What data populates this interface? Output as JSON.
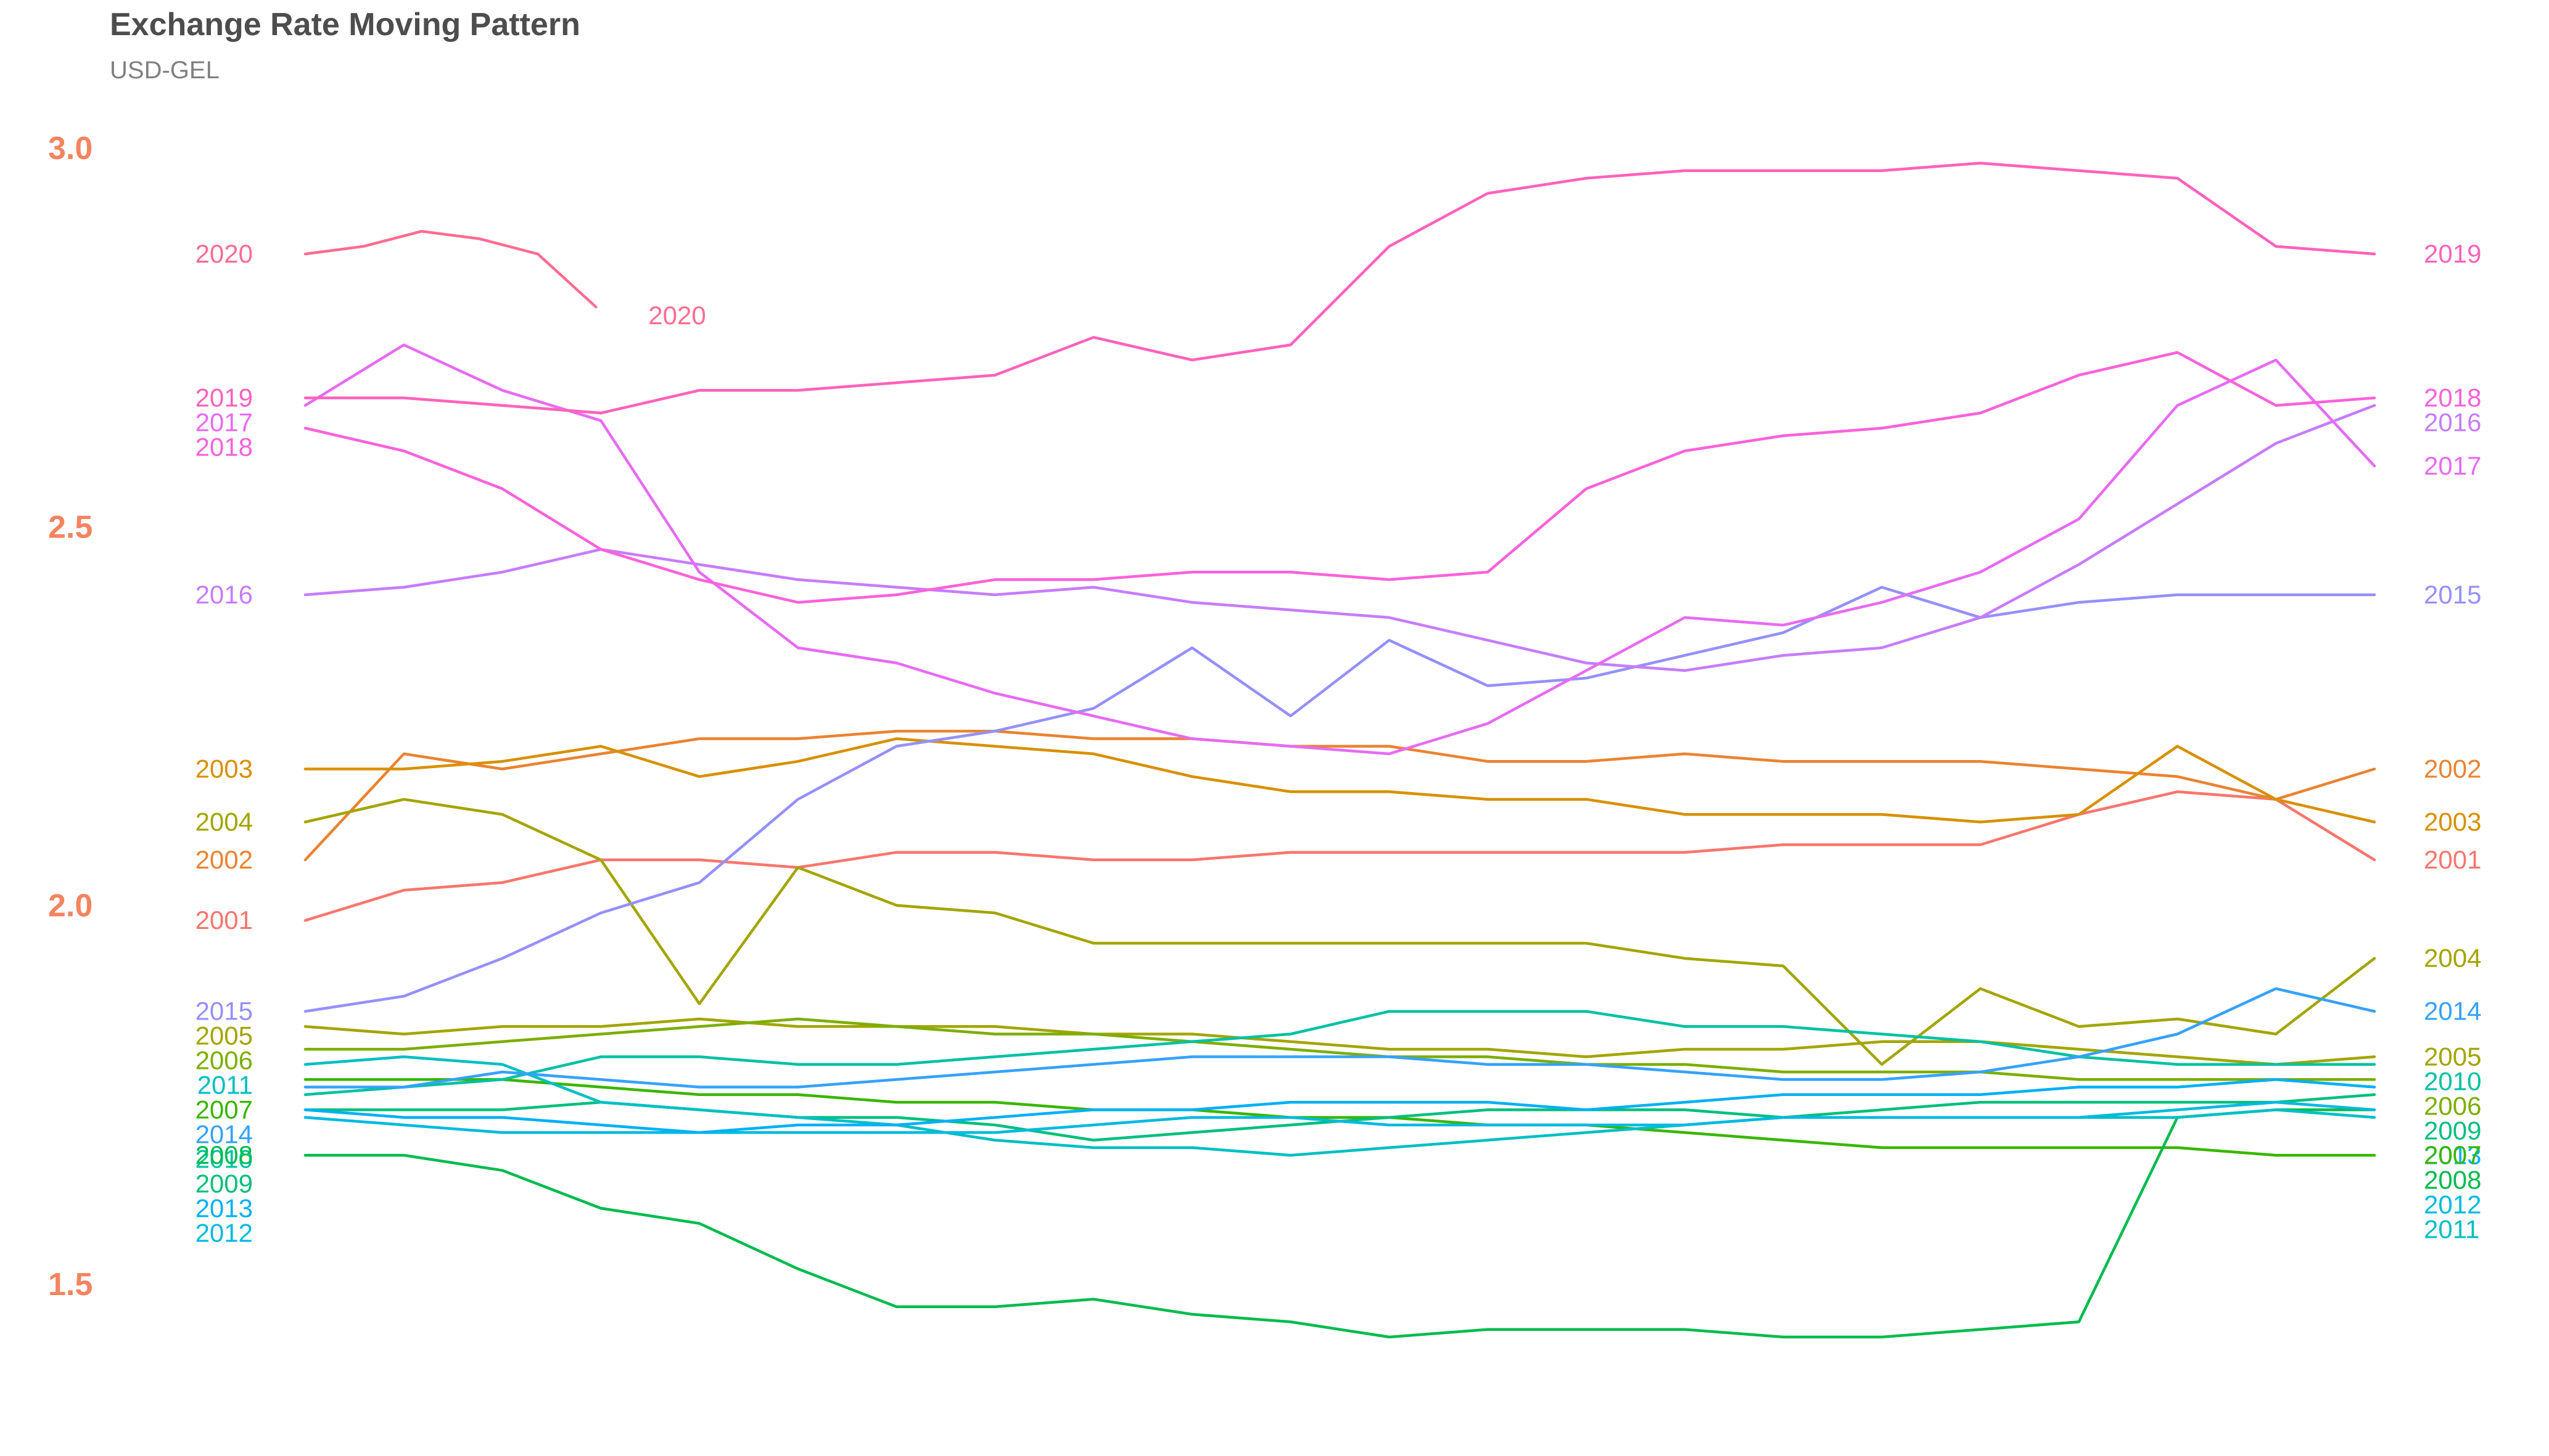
{
  "chart_data": {
    "type": "line",
    "title": "Exchange Rate Moving Pattern",
    "subtitle": "USD-GEL",
    "xlabel": "",
    "ylabel": "",
    "ylim": [
      1.4,
      3.05
    ],
    "y_ticks": [
      "1.5",
      "2.0",
      "2.5",
      "3.0"
    ],
    "y_tick_color": "#f4845f",
    "grid": false,
    "legend": "none",
    "note": "Each series is one year; x runs through the year, labels at both line ends",
    "series": [
      {
        "name": "2001",
        "color": "#f8766d",
        "start": 1.98,
        "end": 2.06,
        "values": [
          1.98,
          2.02,
          2.03,
          2.06,
          2.06,
          2.05,
          2.07,
          2.07,
          2.06,
          2.06,
          2.07,
          2.07,
          2.07,
          2.07,
          2.07,
          2.08,
          2.08,
          2.08,
          2.12,
          2.15,
          2.14,
          2.06
        ]
      },
      {
        "name": "2002",
        "color": "#ea8331",
        "start": 2.06,
        "end": 2.18,
        "values": [
          2.06,
          2.2,
          2.18,
          2.2,
          2.22,
          2.22,
          2.23,
          2.23,
          2.22,
          2.22,
          2.21,
          2.21,
          2.19,
          2.19,
          2.2,
          2.19,
          2.19,
          2.19,
          2.18,
          2.17,
          2.14,
          2.18
        ]
      },
      {
        "name": "2003",
        "color": "#d89000",
        "start": 2.18,
        "end": 2.11,
        "values": [
          2.18,
          2.18,
          2.19,
          2.21,
          2.17,
          2.19,
          2.22,
          2.21,
          2.2,
          2.17,
          2.15,
          2.15,
          2.14,
          2.14,
          2.12,
          2.12,
          2.12,
          2.11,
          2.12,
          2.21,
          2.14,
          2.11
        ]
      },
      {
        "name": "2004",
        "color": "#a3a500",
        "start": 2.11,
        "end": 1.93,
        "values": [
          2.11,
          2.14,
          2.12,
          2.06,
          1.87,
          2.05,
          2.0,
          1.99,
          1.95,
          1.95,
          1.95,
          1.95,
          1.95,
          1.95,
          1.93,
          1.92,
          1.79,
          1.89,
          1.84,
          1.85,
          1.83,
          1.93
        ]
      },
      {
        "name": "2005",
        "color": "#a3a500",
        "start": 1.84,
        "end": 1.8,
        "values": [
          1.84,
          1.83,
          1.84,
          1.84,
          1.85,
          1.84,
          1.84,
          1.84,
          1.83,
          1.83,
          1.82,
          1.81,
          1.81,
          1.8,
          1.81,
          1.81,
          1.82,
          1.82,
          1.81,
          1.8,
          1.79,
          1.8
        ]
      },
      {
        "name": "2006",
        "color": "#7cae00",
        "start": 1.81,
        "end": 1.77,
        "values": [
          1.81,
          1.81,
          1.82,
          1.83,
          1.84,
          1.85,
          1.84,
          1.83,
          1.83,
          1.82,
          1.81,
          1.8,
          1.8,
          1.79,
          1.79,
          1.78,
          1.78,
          1.78,
          1.77,
          1.77,
          1.77,
          1.77
        ]
      },
      {
        "name": "2007",
        "color": "#39b600",
        "start": 1.77,
        "end": 1.67,
        "values": [
          1.77,
          1.77,
          1.77,
          1.76,
          1.75,
          1.75,
          1.74,
          1.74,
          1.73,
          1.73,
          1.72,
          1.72,
          1.71,
          1.71,
          1.7,
          1.69,
          1.68,
          1.68,
          1.68,
          1.68,
          1.67,
          1.67
        ]
      },
      {
        "name": "2008",
        "color": "#00bb4e",
        "start": 1.67,
        "end": 1.73,
        "values": [
          1.67,
          1.67,
          1.65,
          1.6,
          1.58,
          1.52,
          1.47,
          1.47,
          1.48,
          1.46,
          1.45,
          1.43,
          1.44,
          1.44,
          1.44,
          1.43,
          1.43,
          1.44,
          1.45,
          1.72,
          1.73,
          1.73
        ]
      },
      {
        "name": "2009",
        "color": "#00bf7d",
        "start": 1.73,
        "end": 1.76,
        "values": [
          1.73,
          1.73,
          1.73,
          1.74,
          1.73,
          1.72,
          1.72,
          1.71,
          1.69,
          1.7,
          1.71,
          1.72,
          1.73,
          1.73,
          1.73,
          1.72,
          1.73,
          1.74,
          1.74,
          1.74,
          1.74,
          1.75
        ]
      },
      {
        "name": "2010",
        "color": "#00c1a3",
        "start": 1.75,
        "end": 1.79,
        "values": [
          1.75,
          1.76,
          1.77,
          1.8,
          1.8,
          1.79,
          1.79,
          1.8,
          1.81,
          1.82,
          1.83,
          1.86,
          1.86,
          1.86,
          1.84,
          1.84,
          1.83,
          1.82,
          1.8,
          1.79,
          1.79,
          1.79
        ]
      },
      {
        "name": "2011",
        "color": "#00bfc4",
        "start": 1.79,
        "end": 1.72,
        "values": [
          1.79,
          1.8,
          1.79,
          1.74,
          1.73,
          1.72,
          1.71,
          1.69,
          1.68,
          1.68,
          1.67,
          1.68,
          1.69,
          1.7,
          1.71,
          1.72,
          1.72,
          1.72,
          1.72,
          1.72,
          1.73,
          1.72
        ]
      },
      {
        "name": "2012",
        "color": "#00bae0",
        "start": 1.72,
        "end": 1.73,
        "values": [
          1.72,
          1.71,
          1.7,
          1.7,
          1.7,
          1.7,
          1.7,
          1.7,
          1.71,
          1.72,
          1.72,
          1.71,
          1.71,
          1.71,
          1.71,
          1.72,
          1.72,
          1.72,
          1.72,
          1.73,
          1.74,
          1.73
        ]
      },
      {
        "name": "2013",
        "color": "#00b0f6",
        "start": 1.73,
        "end": 1.76,
        "values": [
          1.73,
          1.72,
          1.72,
          1.71,
          1.7,
          1.71,
          1.71,
          1.72,
          1.73,
          1.73,
          1.74,
          1.74,
          1.74,
          1.73,
          1.74,
          1.75,
          1.75,
          1.75,
          1.76,
          1.76,
          1.77,
          1.76
        ]
      },
      {
        "name": "2014",
        "color": "#35a2ff",
        "start": 1.76,
        "end": 1.86,
        "values": [
          1.76,
          1.76,
          1.78,
          1.77,
          1.76,
          1.76,
          1.77,
          1.78,
          1.79,
          1.8,
          1.8,
          1.8,
          1.79,
          1.79,
          1.78,
          1.77,
          1.77,
          1.78,
          1.8,
          1.83,
          1.89,
          1.86
        ]
      },
      {
        "name": "2015",
        "color": "#9590ff",
        "start": 1.86,
        "end": 2.41,
        "values": [
          1.86,
          1.88,
          1.93,
          1.99,
          2.03,
          2.14,
          2.21,
          2.23,
          2.26,
          2.34,
          2.25,
          2.35,
          2.29,
          2.3,
          2.33,
          2.36,
          2.42,
          2.38,
          2.4,
          2.41,
          2.41,
          2.41
        ]
      },
      {
        "name": "2016",
        "color": "#c77cff",
        "start": 2.41,
        "end": 2.66,
        "values": [
          2.41,
          2.42,
          2.44,
          2.47,
          2.45,
          2.43,
          2.42,
          2.41,
          2.42,
          2.4,
          2.39,
          2.38,
          2.35,
          2.32,
          2.31,
          2.33,
          2.34,
          2.38,
          2.45,
          2.53,
          2.61,
          2.66
        ]
      },
      {
        "name": "2017",
        "color": "#e76bf3",
        "start": 2.66,
        "end": 2.58,
        "values": [
          2.66,
          2.74,
          2.68,
          2.64,
          2.44,
          2.34,
          2.32,
          2.28,
          2.25,
          2.22,
          2.21,
          2.2,
          2.24,
          2.31,
          2.38,
          2.37,
          2.4,
          2.44,
          2.51,
          2.66,
          2.72,
          2.58
        ]
      },
      {
        "name": "2018",
        "color": "#fa62db",
        "start": 2.63,
        "end": 2.67,
        "values": [
          2.63,
          2.6,
          2.55,
          2.47,
          2.43,
          2.4,
          2.41,
          2.43,
          2.43,
          2.44,
          2.44,
          2.43,
          2.44,
          2.55,
          2.6,
          2.62,
          2.63,
          2.65,
          2.7,
          2.73,
          2.66,
          2.67
        ]
      },
      {
        "name": "2019",
        "color": "#ff62bc",
        "start": 2.67,
        "end": 2.86,
        "values": [
          2.67,
          2.67,
          2.66,
          2.65,
          2.68,
          2.68,
          2.69,
          2.7,
          2.75,
          2.72,
          2.74,
          2.87,
          2.94,
          2.96,
          2.97,
          2.97,
          2.97,
          2.98,
          2.97,
          2.96,
          2.87,
          2.86
        ]
      },
      {
        "name": "2020",
        "color": "#ff6c91",
        "start": 2.86,
        "end": 2.79,
        "values": [
          2.86,
          2.87,
          2.89,
          2.88,
          2.86,
          2.79
        ]
      }
    ]
  }
}
